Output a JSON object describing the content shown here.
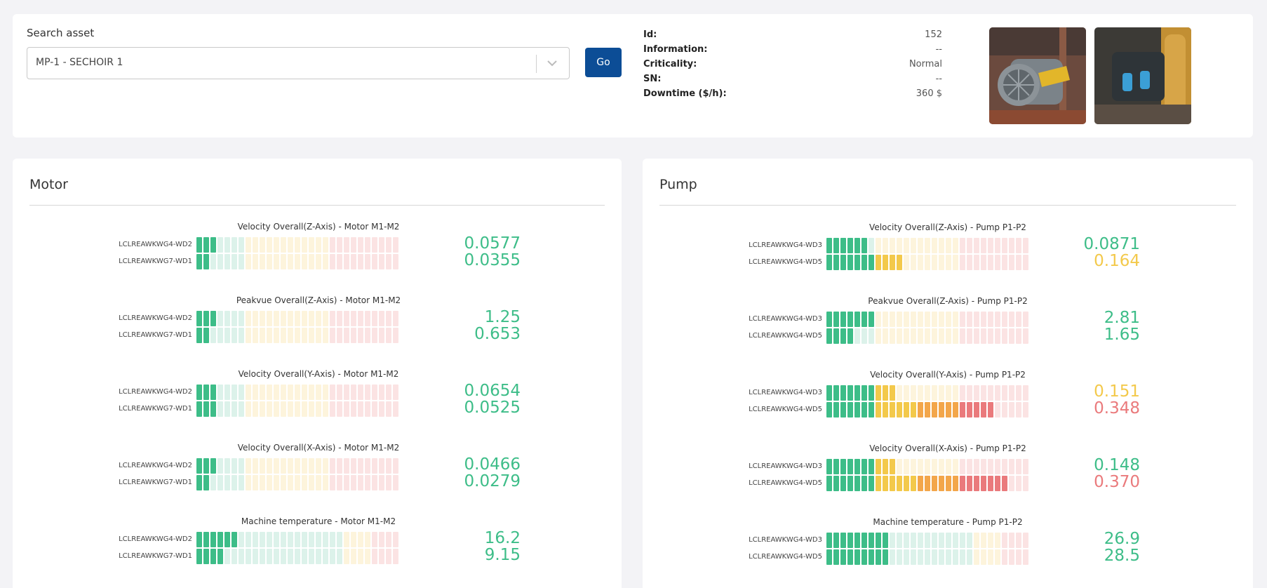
{
  "search": {
    "label": "Search asset",
    "selected": "MP-1 - SECHOIR 1",
    "go_label": "Go"
  },
  "info": [
    {
      "label": "Id:",
      "value": "152"
    },
    {
      "label": "Information:",
      "value": "--"
    },
    {
      "label": "Criticality:",
      "value": "Normal"
    },
    {
      "label": "SN:",
      "value": "--"
    },
    {
      "label": "Downtime ($/h):",
      "value": "360 $"
    }
  ],
  "colors": {
    "good": "#3dbd88",
    "good_light": "#dcf2ea",
    "warn": "#f3c94b",
    "warn_light": "#fdf4dc",
    "orange": "#f3a64a",
    "bad": "#ea7a7c",
    "bad_light": "#fbe3e3",
    "button": "#0c4d96"
  },
  "motor": {
    "title": "Motor",
    "groups": [
      {
        "title": "Velocity Overall(Z-Axis) - Motor M1-M2",
        "rows": [
          {
            "label": "LCLREAWKWG4-WD2",
            "value": "0.0577",
            "level": 3,
            "status": "good"
          },
          {
            "label": "LCLREAWKWG7-WD1",
            "value": "0.0355",
            "level": 2,
            "status": "good"
          }
        ]
      },
      {
        "title": "Peakvue Overall(Z-Axis) - Motor M1-M2",
        "rows": [
          {
            "label": "LCLREAWKWG4-WD2",
            "value": "1.25",
            "level": 3,
            "status": "good"
          },
          {
            "label": "LCLREAWKWG7-WD1",
            "value": "0.653",
            "level": 2,
            "status": "good"
          }
        ]
      },
      {
        "title": "Velocity Overall(Y-Axis) - Motor M1-M2",
        "rows": [
          {
            "label": "LCLREAWKWG4-WD2",
            "value": "0.0654",
            "level": 3,
            "status": "good"
          },
          {
            "label": "LCLREAWKWG7-WD1",
            "value": "0.0525",
            "level": 3,
            "status": "good"
          }
        ]
      },
      {
        "title": "Velocity Overall(X-Axis) - Motor M1-M2",
        "rows": [
          {
            "label": "LCLREAWKWG4-WD2",
            "value": "0.0466",
            "level": 3,
            "status": "good"
          },
          {
            "label": "LCLREAWKWG7-WD1",
            "value": "0.0279",
            "level": 2,
            "status": "good"
          }
        ]
      },
      {
        "title": "Machine temperature - Motor M1-M2",
        "rows": [
          {
            "label": "LCLREAWKWG4-WD2",
            "value": "16.2",
            "level": 6,
            "status": "good"
          },
          {
            "label": "LCLREAWKWG7-WD1",
            "value": "9.15",
            "level": 4,
            "status": "good"
          }
        ]
      }
    ]
  },
  "pump": {
    "title": "Pump",
    "groups": [
      {
        "title": "Velocity Overall(Z-Axis) - Pump P1-P2",
        "rows": [
          {
            "label": "LCLREAWKWG4-WD3",
            "value": "0.0871",
            "level": 6,
            "status": "good"
          },
          {
            "label": "LCLREAWKWG4-WD5",
            "value": "0.164",
            "level": 11,
            "status": "warn"
          }
        ]
      },
      {
        "title": "Peakvue Overall(Z-Axis) - Pump P1-P2",
        "rows": [
          {
            "label": "LCLREAWKWG4-WD3",
            "value": "2.81",
            "level": 7,
            "status": "good"
          },
          {
            "label": "LCLREAWKWG4-WD5",
            "value": "1.65",
            "level": 4,
            "status": "good"
          }
        ]
      },
      {
        "title": "Velocity Overall(Y-Axis) - Pump P1-P2",
        "rows": [
          {
            "label": "LCLREAWKWG4-WD3",
            "value": "0.151",
            "level": 10,
            "status": "warn"
          },
          {
            "label": "LCLREAWKWG4-WD5",
            "value": "0.348",
            "level": 24,
            "status": "bad"
          }
        ]
      },
      {
        "title": "Velocity Overall(X-Axis) - Pump P1-P2",
        "rows": [
          {
            "label": "LCLREAWKWG4-WD3",
            "value": "0.148",
            "level": 10,
            "status": "good"
          },
          {
            "label": "LCLREAWKWG4-WD5",
            "value": "0.370",
            "level": 26,
            "status": "bad"
          }
        ]
      },
      {
        "title": "Machine temperature - Pump P1-P2",
        "rows": [
          {
            "label": "LCLREAWKWG4-WD3",
            "value": "26.9",
            "level": 9,
            "status": "good"
          },
          {
            "label": "LCLREAWKWG4-WD5",
            "value": "28.5",
            "level": 9,
            "status": "good"
          }
        ]
      }
    ]
  }
}
